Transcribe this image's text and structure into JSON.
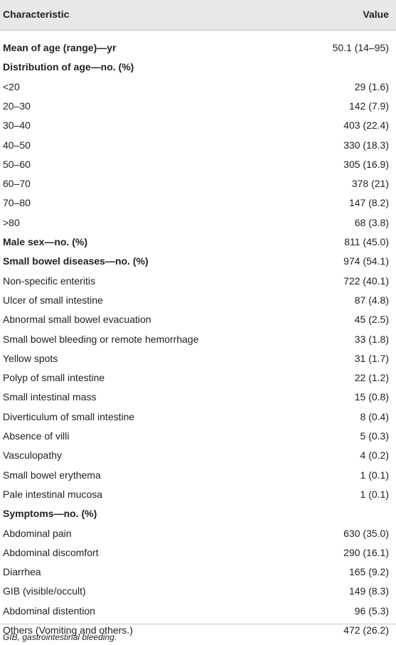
{
  "header": [
    "Characteristic",
    "Value"
  ],
  "sections": [
    {
      "label": "Mean of age (range)—yr",
      "value": "50.1 (14–95)",
      "items": []
    },
    {
      "label": "Distribution of age—no. (%)",
      "items": [
        [
          "<20",
          "29 (1.6)"
        ],
        [
          "20–30",
          "142 (7.9)"
        ],
        [
          "30–40",
          "403 (22.4)"
        ],
        [
          "40–50",
          "330 (18.3)"
        ],
        [
          "50–60",
          "305 (16.9)"
        ],
        [
          "60–70",
          "378 (21)"
        ],
        [
          "70–80",
          "147 (8.2)"
        ],
        [
          ">80",
          "68 (3.8)"
        ]
      ]
    },
    {
      "label": "Male sex—no. (%)",
      "value": "811 (45.0)",
      "items": []
    },
    {
      "label": "Small bowel diseases—no. (%)",
      "value": "974 (54.1)",
      "items": [
        [
          "Non-specific enteritis",
          "722 (40.1)"
        ],
        [
          "Ulcer of small intestine",
          "87 (4.8)"
        ],
        [
          "Abnormal small bowel evacuation",
          "45 (2.5)"
        ],
        [
          "Small bowel bleeding or remote hemorrhage",
          "33 (1.8)"
        ],
        [
          "Yellow spots",
          "31 (1.7)"
        ],
        [
          "Polyp of small intestine",
          "22 (1.2)"
        ],
        [
          "Small intestinal mass",
          "15 (0.8)"
        ],
        [
          "Diverticulum of small intestine",
          "8 (0.4)"
        ],
        [
          "Absence of villi",
          "5 (0.3)"
        ],
        [
          "Vasculopathy",
          "4 (0.2)"
        ],
        [
          "Small bowel erythema",
          "1 (0.1)"
        ],
        [
          "Pale intestinal mucosa",
          "1 (0.1)"
        ]
      ]
    },
    {
      "label": "Symptoms—no. (%)",
      "items": [
        [
          "Abdominal pain",
          "630 (35.0)"
        ],
        [
          "Abdominal discomfort",
          "290 (16.1)"
        ],
        [
          "Diarrhea",
          "165 (9.2)"
        ],
        [
          "GIB (visible/occult)",
          "149 (8.3)"
        ],
        [
          "Abdominal distention",
          "96 (5.3)"
        ],
        [
          "Others (Vomiting and others.)",
          "472 (26.2)"
        ]
      ]
    }
  ],
  "footnote": "GIB, gastrointestinal bleeding."
}
